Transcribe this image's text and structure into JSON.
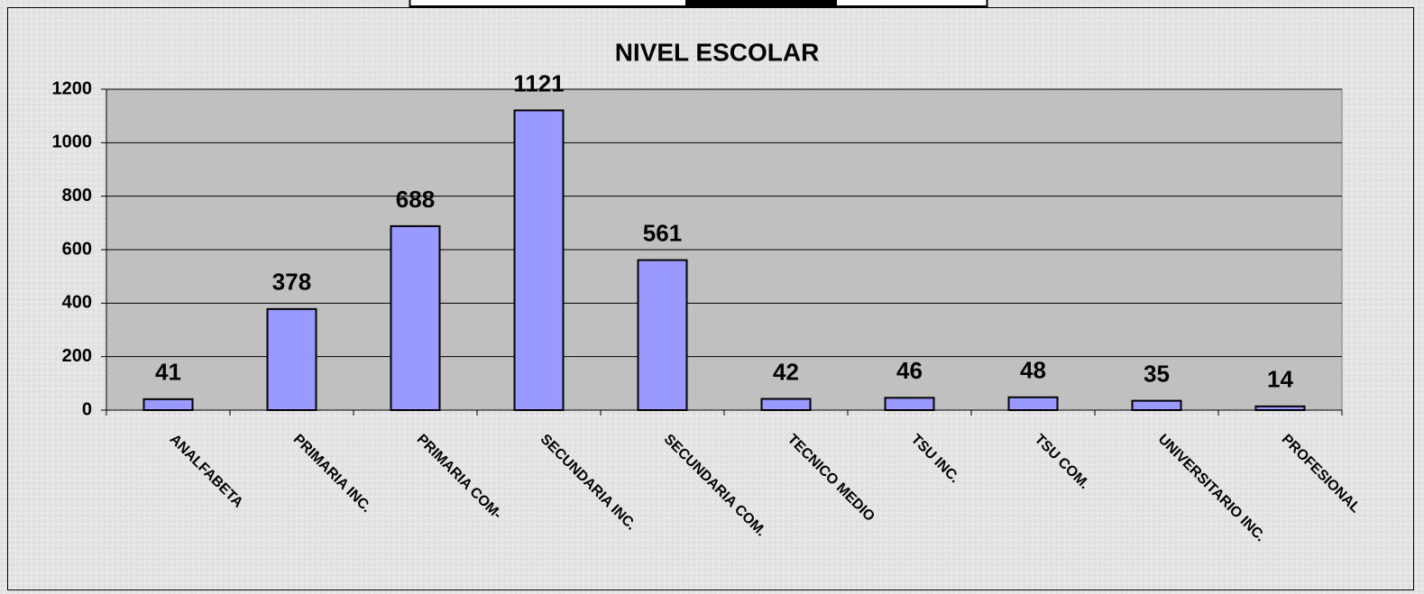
{
  "chart_data": {
    "type": "bar",
    "title": "NIVEL ESCOLAR",
    "categories": [
      "ANALFABETA",
      "PRIMARIA INC.",
      "PRIMARIA COM-",
      "SECUNDARIA INC.",
      "SECUNDARIA COM.",
      "TECNICO MEDIO",
      "TSU INC.",
      "TSU COM.",
      "UNIVERSITARIO INC.",
      "PROFESIONAL"
    ],
    "values": [
      41,
      378,
      688,
      1121,
      561,
      42,
      46,
      48,
      35,
      14
    ],
    "color": "#9999ff",
    "ylim": [
      0,
      1200
    ],
    "yticks": [
      0,
      200,
      400,
      600,
      800,
      1000,
      1200
    ],
    "grid": true
  }
}
